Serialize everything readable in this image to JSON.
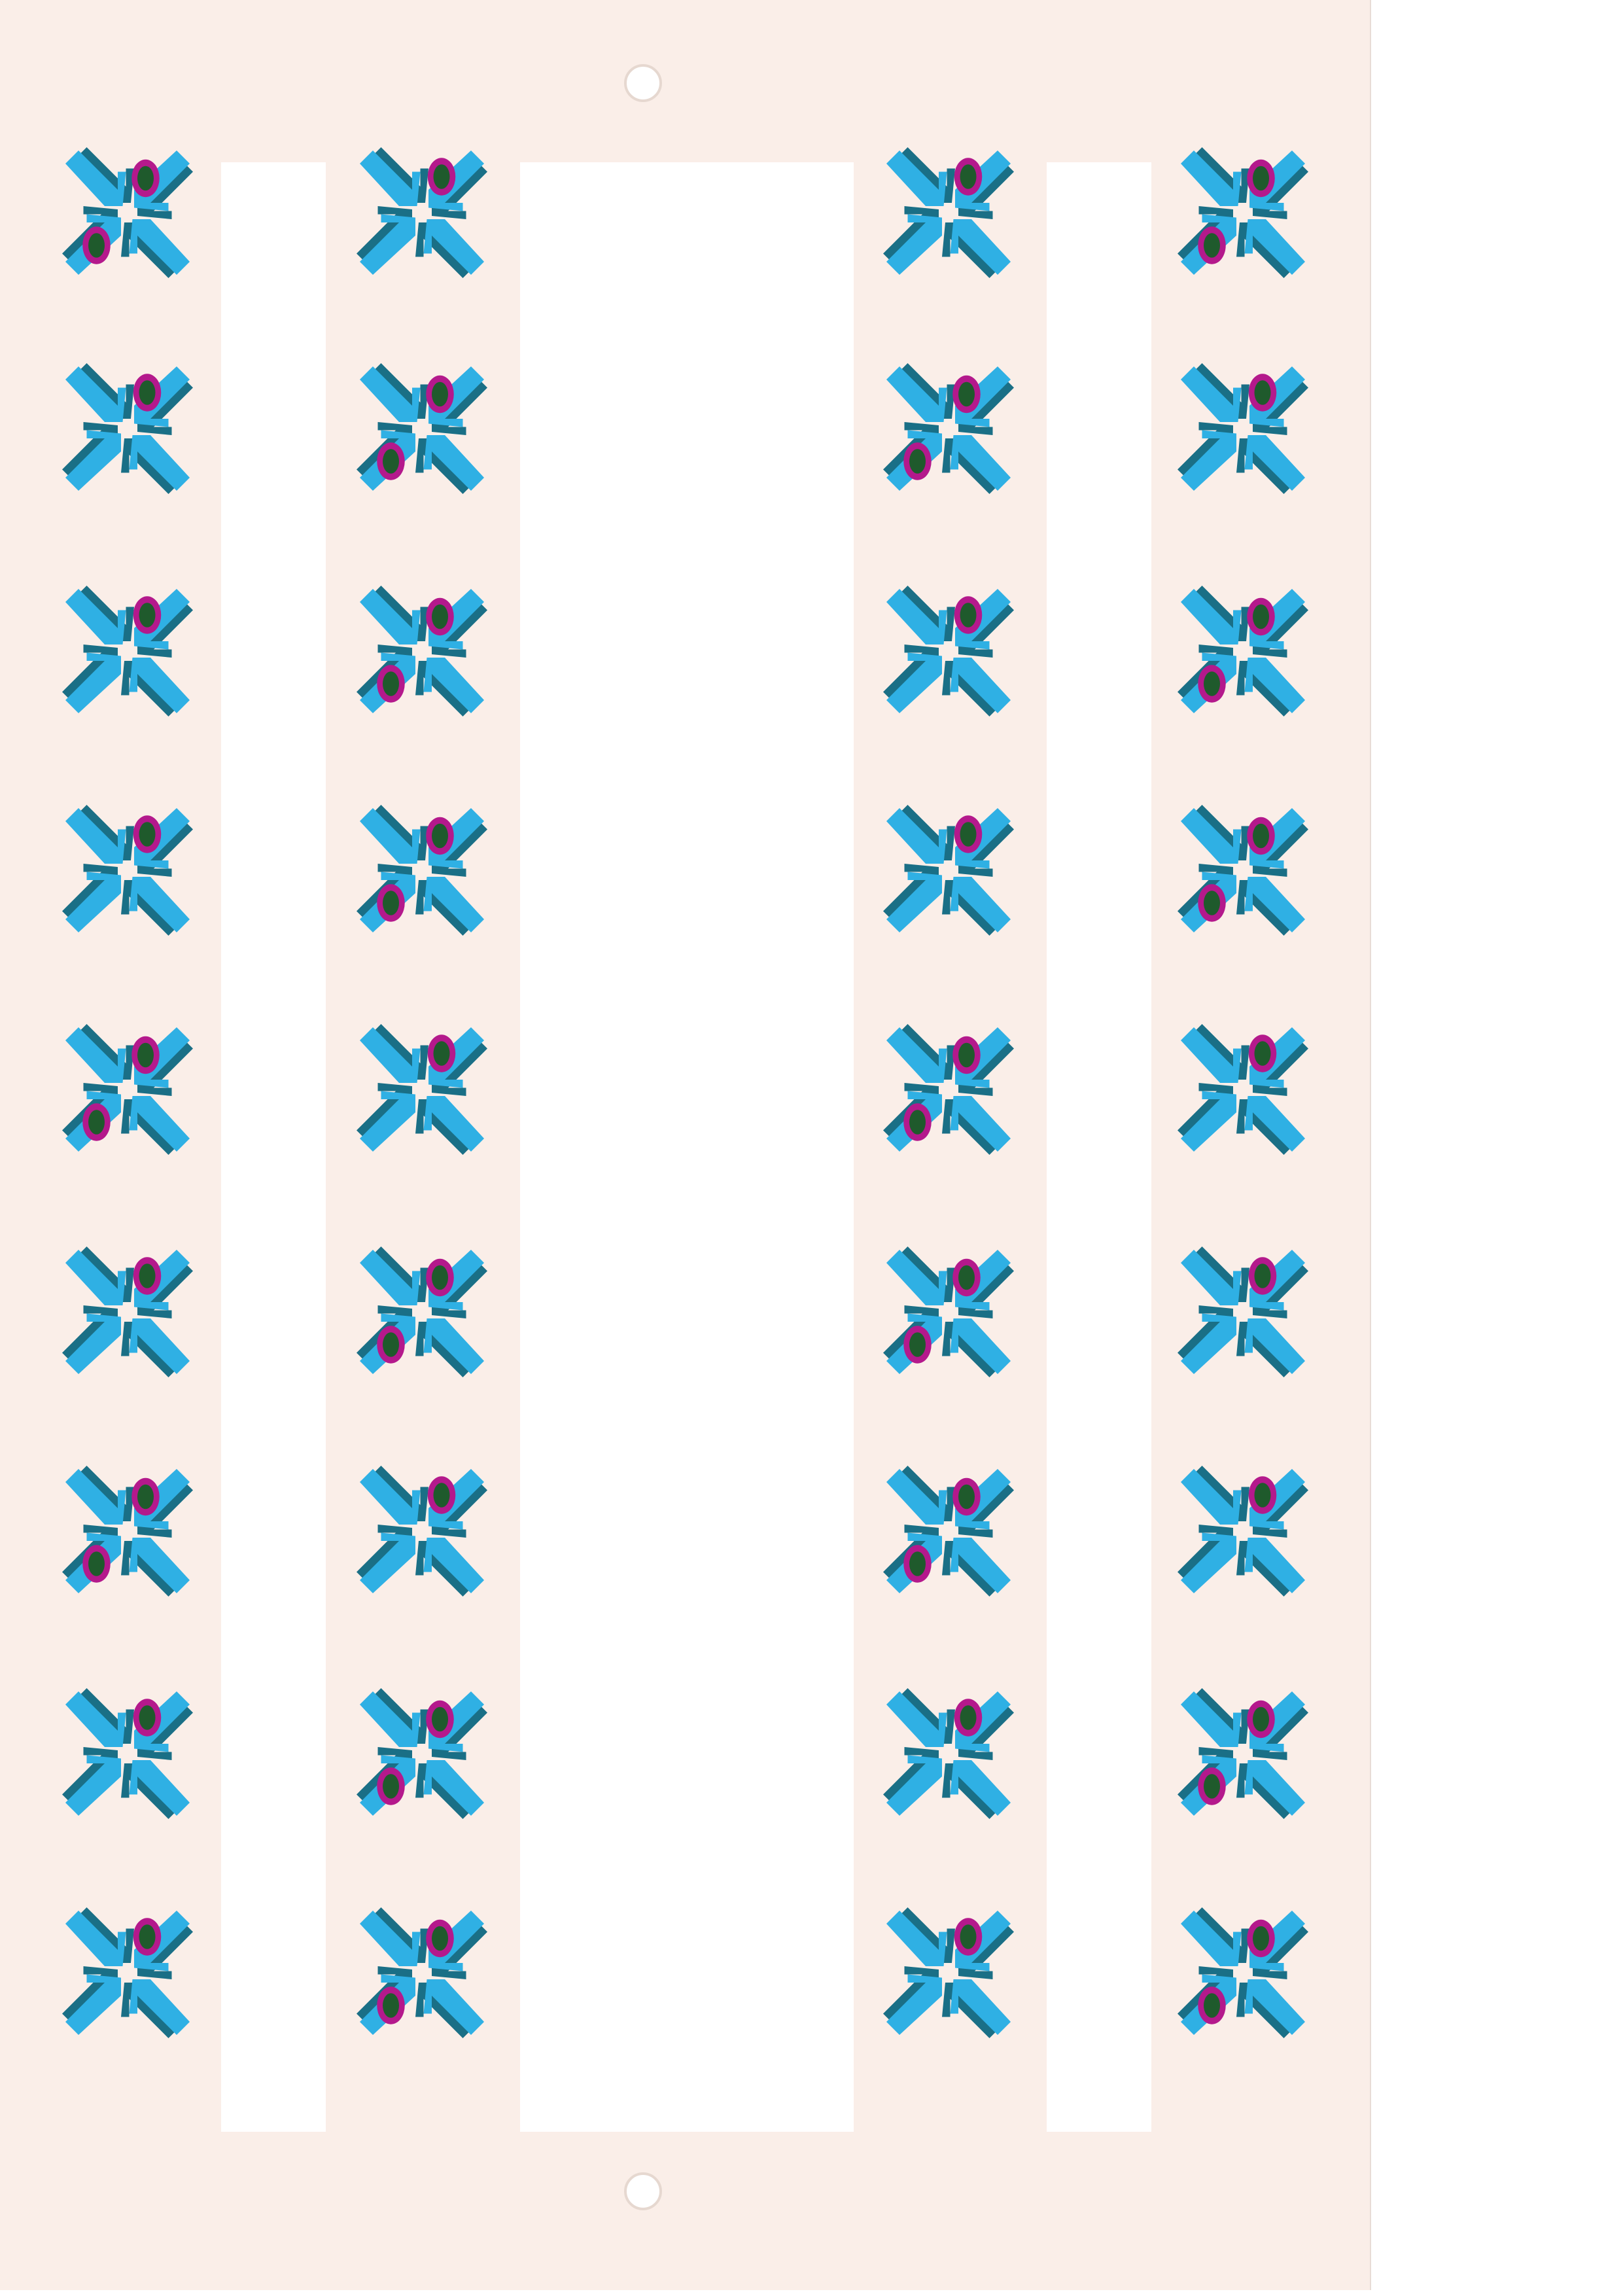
{
  "sheet": {
    "symbol_name": "crossed-arrows-symbol",
    "colors": {
      "card": "#faeee8",
      "arrow_face": "#2fb0e4",
      "arrow_side": "#1a6f86",
      "ring": "#b4198c",
      "dot": "#1f5a2c"
    },
    "columns": 4,
    "rows": 9,
    "variants": [
      [
        "two-rings",
        "one-ring",
        "one-ring",
        "two-rings"
      ],
      [
        "one-ring",
        "two-rings",
        "two-rings",
        "one-ring"
      ],
      [
        "one-ring",
        "two-rings",
        "one-ring",
        "two-rings"
      ],
      [
        "one-ring",
        "two-rings",
        "one-ring",
        "two-rings"
      ],
      [
        "two-rings",
        "one-ring",
        "two-rings",
        "one-ring"
      ],
      [
        "one-ring",
        "two-rings",
        "two-rings",
        "one-ring"
      ],
      [
        "two-rings",
        "one-ring",
        "two-rings",
        "one-ring"
      ],
      [
        "one-ring",
        "two-rings",
        "one-ring",
        "two-rings"
      ],
      [
        "one-ring",
        "two-rings",
        "one-ring",
        "two-rings"
      ]
    ]
  }
}
